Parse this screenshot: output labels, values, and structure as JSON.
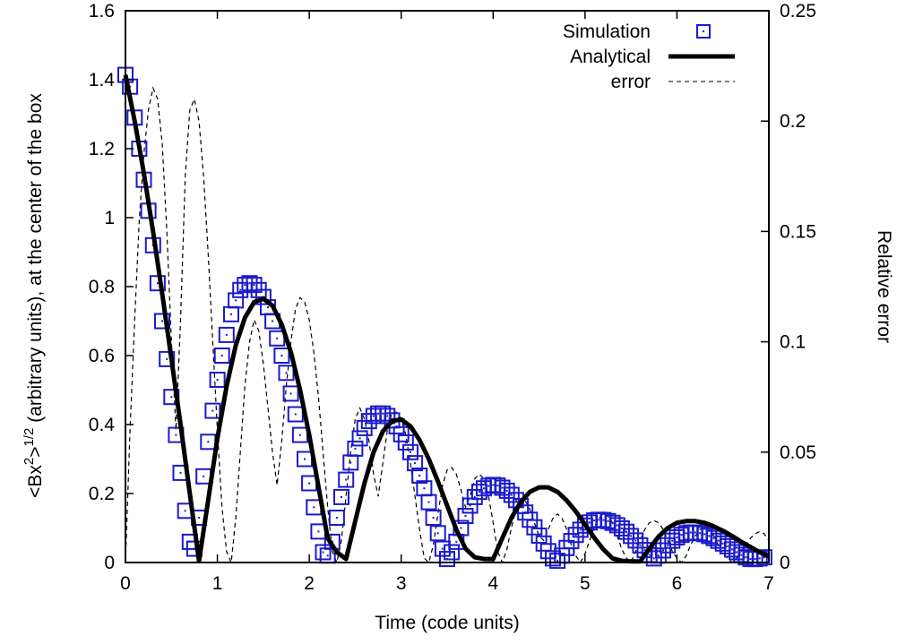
{
  "chart_data": {
    "type": "line",
    "title": "",
    "xlabel": "Time (code units)",
    "ylabel_left": "<Bx²>¹ᐟ² (arbitrary units), at the center of the box",
    "ylabel_left_parts": {
      "prefix": "<Bx",
      "sup1": "2",
      "middle": ">",
      "sup2": "1/2",
      "suffix": " (arbitrary units), at the center of the box"
    },
    "ylabel_right": "Relative error",
    "xlim": [
      0,
      7
    ],
    "ylim_left": [
      0,
      1.6
    ],
    "ylim_right": [
      0,
      0.25
    ],
    "xticks": [
      "0",
      "1",
      "2",
      "3",
      "4",
      "5",
      "6",
      "7"
    ],
    "yticks_left": [
      "0",
      "0.2",
      "0.4",
      "0.6",
      "0.8",
      "1",
      "1.2",
      "1.4",
      "1.6"
    ],
    "yticks_right": [
      "0",
      "0.05",
      "0.1",
      "0.15",
      "0.2",
      "0.25"
    ],
    "grid": false,
    "legend_position": "top-right",
    "colors": {
      "simulation": "#1a1acc",
      "analytical": "#000000",
      "error": "#000000"
    },
    "series": [
      {
        "name": "Simulation",
        "axis": "left",
        "marker": "open-square-with-dot",
        "x": [
          0.0,
          0.05,
          0.1,
          0.15,
          0.2,
          0.25,
          0.3,
          0.35,
          0.4,
          0.45,
          0.5,
          0.55,
          0.6,
          0.65,
          0.7,
          0.75,
          0.8,
          0.85,
          0.9,
          0.95,
          1.0,
          1.05,
          1.1,
          1.15,
          1.2,
          1.25,
          1.3,
          1.35,
          1.4,
          1.45,
          1.5,
          1.55,
          1.6,
          1.65,
          1.7,
          1.75,
          1.8,
          1.85,
          1.9,
          1.95,
          2.0,
          2.05,
          2.1,
          2.15,
          2.2,
          2.25,
          2.3,
          2.35,
          2.4,
          2.45,
          2.5,
          2.55,
          2.6,
          2.65,
          2.7,
          2.75,
          2.8,
          2.85,
          2.9,
          2.95,
          3.0,
          3.05,
          3.1,
          3.15,
          3.2,
          3.25,
          3.3,
          3.35,
          3.4,
          3.45,
          3.5,
          3.55,
          3.6,
          3.65,
          3.7,
          3.75,
          3.8,
          3.85,
          3.9,
          3.95,
          4.0,
          4.05,
          4.1,
          4.15,
          4.2,
          4.25,
          4.3,
          4.35,
          4.4,
          4.45,
          4.5,
          4.55,
          4.6,
          4.65,
          4.7,
          4.75,
          4.8,
          4.85,
          4.9,
          4.95,
          5.0,
          5.05,
          5.1,
          5.15,
          5.2,
          5.25,
          5.3,
          5.35,
          5.4,
          5.45,
          5.5,
          5.55,
          5.6,
          5.65,
          5.7,
          5.75,
          5.8,
          5.85,
          5.9,
          5.95,
          6.0,
          6.05,
          6.1,
          6.15,
          6.2,
          6.25,
          6.3,
          6.35,
          6.4,
          6.45,
          6.5,
          6.55,
          6.6,
          6.65,
          6.7,
          6.75,
          6.8,
          6.85,
          6.9,
          6.95
        ],
        "y": [
          1.414,
          1.38,
          1.29,
          1.2,
          1.11,
          1.02,
          0.92,
          0.81,
          0.7,
          0.59,
          0.48,
          0.37,
          0.26,
          0.15,
          0.06,
          0.04,
          0.13,
          0.25,
          0.35,
          0.44,
          0.53,
          0.6,
          0.66,
          0.72,
          0.76,
          0.79,
          0.805,
          0.81,
          0.805,
          0.79,
          0.77,
          0.74,
          0.7,
          0.65,
          0.6,
          0.55,
          0.49,
          0.43,
          0.37,
          0.3,
          0.23,
          0.16,
          0.09,
          0.03,
          0.02,
          0.06,
          0.13,
          0.19,
          0.24,
          0.29,
          0.33,
          0.36,
          0.39,
          0.41,
          0.425,
          0.432,
          0.432,
          0.425,
          0.412,
          0.395,
          0.372,
          0.348,
          0.32,
          0.288,
          0.252,
          0.215,
          0.175,
          0.13,
          0.085,
          0.04,
          0.01,
          0.03,
          0.06,
          0.1,
          0.135,
          0.165,
          0.19,
          0.205,
          0.215,
          0.222,
          0.225,
          0.223,
          0.217,
          0.208,
          0.196,
          0.181,
          0.164,
          0.145,
          0.124,
          0.102,
          0.078,
          0.055,
          0.033,
          0.012,
          0.005,
          0.02,
          0.042,
          0.062,
          0.08,
          0.095,
          0.107,
          0.116,
          0.122,
          0.124,
          0.123,
          0.12,
          0.115,
          0.108,
          0.099,
          0.089,
          0.077,
          0.064,
          0.05,
          0.036,
          0.022,
          0.012,
          0.02,
          0.035,
          0.05,
          0.063,
          0.073,
          0.08,
          0.085,
          0.087,
          0.087,
          0.085,
          0.082,
          0.077,
          0.071,
          0.063,
          0.055,
          0.047,
          0.038,
          0.03,
          0.022,
          0.015,
          0.01,
          0.01,
          0.012,
          0.015
        ]
      },
      {
        "name": "Analytical",
        "axis": "left",
        "style": "thick-solid",
        "x": [
          0.0,
          0.1,
          0.2,
          0.3,
          0.4,
          0.5,
          0.6,
          0.7,
          0.8,
          0.9,
          1.0,
          1.1,
          1.2,
          1.3,
          1.4,
          1.5,
          1.6,
          1.7,
          1.8,
          1.9,
          2.0,
          2.1,
          2.2,
          2.3,
          2.4,
          2.5,
          2.6,
          2.7,
          2.8,
          2.9,
          3.0,
          3.1,
          3.2,
          3.3,
          3.4,
          3.5,
          3.6,
          3.7,
          3.8,
          3.9,
          4.0,
          4.1,
          4.2,
          4.3,
          4.4,
          4.5,
          4.6,
          4.7,
          4.8,
          4.9,
          5.0,
          5.1,
          5.2,
          5.3,
          5.4,
          5.5,
          5.6,
          5.7,
          5.8,
          5.9,
          6.0,
          6.1,
          6.2,
          6.3,
          6.4,
          6.5,
          6.6,
          6.7,
          6.8,
          6.9,
          7.0
        ],
        "y": [
          1.414,
          1.28,
          1.13,
          0.96,
          0.78,
          0.59,
          0.4,
          0.2,
          0.005,
          0.18,
          0.36,
          0.51,
          0.63,
          0.71,
          0.755,
          0.765,
          0.745,
          0.69,
          0.61,
          0.5,
          0.37,
          0.22,
          0.07,
          0.03,
          0.01,
          0.12,
          0.23,
          0.32,
          0.38,
          0.41,
          0.415,
          0.395,
          0.355,
          0.3,
          0.235,
          0.165,
          0.095,
          0.04,
          0.015,
          0.01,
          0.01,
          0.07,
          0.13,
          0.175,
          0.205,
          0.218,
          0.218,
          0.205,
          0.18,
          0.148,
          0.11,
          0.072,
          0.038,
          0.012,
          0.005,
          0.003,
          0.003,
          0.04,
          0.075,
          0.1,
          0.115,
          0.12,
          0.12,
          0.115,
          0.105,
          0.092,
          0.077,
          0.06,
          0.045,
          0.03,
          0.018
        ]
      },
      {
        "name": "error",
        "axis": "right",
        "style": "thin-dashed",
        "x": [
          0.0,
          0.05,
          0.1,
          0.15,
          0.2,
          0.25,
          0.3,
          0.35,
          0.4,
          0.45,
          0.5,
          0.55,
          0.6,
          0.65,
          0.7,
          0.75,
          0.8,
          0.85,
          0.9,
          0.95,
          1.0,
          1.05,
          1.1,
          1.15,
          1.2,
          1.25,
          1.3,
          1.35,
          1.4,
          1.45,
          1.5,
          1.55,
          1.6,
          1.65,
          1.7,
          1.75,
          1.8,
          1.85,
          1.9,
          1.95,
          2.0,
          2.05,
          2.1,
          2.15,
          2.2,
          2.25,
          2.3,
          2.35,
          2.4,
          2.45,
          2.5,
          2.55,
          2.6,
          2.65,
          2.7,
          2.75,
          2.8,
          2.85,
          2.9,
          2.95,
          3.0,
          3.05,
          3.1,
          3.15,
          3.2,
          3.25,
          3.3,
          3.35,
          3.4,
          3.45,
          3.5,
          3.55,
          3.6,
          3.65,
          3.7,
          3.75,
          3.8,
          3.85,
          3.9,
          3.95,
          4.0,
          4.05,
          4.1,
          4.15,
          4.2,
          4.25,
          4.3,
          4.35,
          4.4,
          4.45,
          4.5,
          4.55,
          4.6,
          4.65,
          4.7,
          4.75,
          4.8,
          4.85,
          4.9,
          4.95,
          5.0,
          5.05,
          5.1,
          5.15,
          5.2,
          5.25,
          5.3,
          5.35,
          5.4,
          5.45,
          5.5,
          5.55,
          5.6,
          5.65,
          5.7,
          5.75,
          5.8,
          5.85,
          5.9,
          5.95,
          6.0,
          6.05,
          6.1,
          6.15,
          6.2,
          6.25,
          6.3,
          6.35,
          6.4,
          6.45,
          6.5,
          6.55,
          6.6,
          6.65,
          6.7,
          6.75,
          6.8,
          6.85,
          6.9,
          6.95,
          7.0
        ],
        "y": [
          0.0,
          0.06,
          0.11,
          0.155,
          0.185,
          0.205,
          0.215,
          0.21,
          0.19,
          0.15,
          0.1,
          0.06,
          0.11,
          0.175,
          0.205,
          0.21,
          0.2,
          0.175,
          0.14,
          0.1,
          0.06,
          0.025,
          0.005,
          0.0,
          0.02,
          0.05,
          0.08,
          0.1,
          0.11,
          0.105,
          0.09,
          0.07,
          0.05,
          0.035,
          0.055,
          0.08,
          0.1,
          0.115,
          0.12,
          0.118,
          0.11,
          0.095,
          0.075,
          0.05,
          0.025,
          0.005,
          0.0,
          0.01,
          0.03,
          0.05,
          0.065,
          0.07,
          0.065,
          0.055,
          0.04,
          0.03,
          0.045,
          0.06,
          0.068,
          0.068,
          0.065,
          0.058,
          0.045,
          0.03,
          0.015,
          0.002,
          0.0,
          0.008,
          0.022,
          0.035,
          0.042,
          0.043,
          0.04,
          0.033,
          0.025,
          0.03,
          0.038,
          0.04,
          0.038,
          0.03,
          0.018,
          0.005,
          0.0,
          0.006,
          0.016,
          0.024,
          0.028,
          0.028,
          0.024,
          0.018,
          0.012,
          0.01,
          0.015,
          0.02,
          0.022,
          0.02,
          0.015,
          0.008,
          0.003,
          0.0,
          0.004,
          0.01,
          0.016,
          0.02,
          0.022,
          0.021,
          0.018,
          0.012,
          0.006,
          0.002,
          0.0,
          0.005,
          0.01,
          0.015,
          0.018,
          0.019,
          0.018,
          0.015,
          0.01,
          0.005,
          0.002,
          0.0,
          0.003,
          0.008,
          0.012,
          0.015,
          0.016,
          0.015,
          0.012,
          0.008,
          0.004,
          0.002,
          0.0,
          0.002,
          0.005,
          0.008,
          0.011,
          0.013,
          0.014,
          0.013,
          0.01
        ]
      }
    ]
  }
}
